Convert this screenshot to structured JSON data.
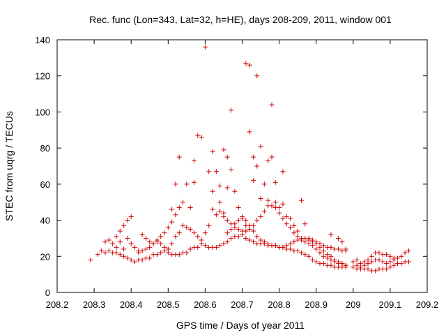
{
  "chart_data": {
    "type": "scatter",
    "title": "Rec. func (Lon=343, Lat=32, h=HE), days 208-209, 2011, window 001",
    "xlabel": "GPS time / Days of year 2011",
    "ylabel": "STEC from uqrg / TECUs",
    "xlim": [
      208.2,
      209.2
    ],
    "ylim": [
      0,
      140
    ],
    "xticks": [
      208.2,
      208.3,
      208.4,
      208.5,
      208.6,
      208.7,
      208.8,
      208.9,
      209,
      209.1,
      209.2
    ],
    "xtick_labels": [
      "208.2",
      "208.3",
      "208.4",
      "208.5",
      "208.6",
      "208.7",
      "208.8",
      "208.9",
      "209",
      "209.1",
      "209.2"
    ],
    "yticks": [
      0,
      20,
      40,
      60,
      80,
      100,
      120,
      140
    ],
    "ytick_labels": [
      "0",
      "20",
      "40",
      "60",
      "80",
      "100",
      "120",
      "140"
    ],
    "grid": false,
    "marker": "+",
    "color": "#cc0000",
    "series": [
      {
        "name": "STEC",
        "points": [
          [
            208.29,
            18
          ],
          [
            208.31,
            21
          ],
          [
            208.32,
            23
          ],
          [
            208.33,
            28
          ],
          [
            208.34,
            29
          ],
          [
            208.35,
            22
          ],
          [
            208.36,
            22
          ],
          [
            208.37,
            21
          ],
          [
            208.38,
            20
          ],
          [
            208.39,
            19
          ],
          [
            208.4,
            18
          ],
          [
            208.41,
            17
          ],
          [
            208.42,
            18
          ],
          [
            208.43,
            18
          ],
          [
            208.44,
            19
          ],
          [
            208.45,
            19
          ],
          [
            208.46,
            21
          ],
          [
            208.47,
            21
          ],
          [
            208.48,
            22
          ],
          [
            208.49,
            23
          ],
          [
            208.5,
            22
          ],
          [
            208.51,
            21
          ],
          [
            208.52,
            21
          ],
          [
            208.53,
            21
          ],
          [
            208.54,
            22
          ],
          [
            208.55,
            22
          ],
          [
            208.56,
            24
          ],
          [
            208.57,
            25
          ],
          [
            208.58,
            25
          ],
          [
            208.59,
            27
          ],
          [
            208.6,
            26
          ],
          [
            208.61,
            25
          ],
          [
            208.62,
            25
          ],
          [
            208.63,
            25
          ],
          [
            208.64,
            26
          ],
          [
            208.65,
            27
          ],
          [
            208.66,
            28
          ],
          [
            208.67,
            30
          ],
          [
            208.68,
            31
          ],
          [
            208.69,
            31
          ],
          [
            208.7,
            32
          ],
          [
            208.71,
            30
          ],
          [
            208.72,
            29
          ],
          [
            208.73,
            28
          ],
          [
            208.74,
            27
          ],
          [
            208.75,
            27
          ],
          [
            208.76,
            27
          ],
          [
            208.77,
            26
          ],
          [
            208.78,
            26
          ],
          [
            208.79,
            26
          ],
          [
            208.8,
            25
          ],
          [
            208.81,
            25
          ],
          [
            208.82,
            24
          ],
          [
            208.83,
            24
          ],
          [
            208.84,
            23
          ],
          [
            208.85,
            23
          ],
          [
            208.86,
            22
          ],
          [
            208.87,
            21
          ],
          [
            208.88,
            20
          ],
          [
            208.89,
            18
          ],
          [
            208.9,
            17
          ],
          [
            208.91,
            16
          ],
          [
            208.92,
            16
          ],
          [
            208.93,
            15
          ],
          [
            208.94,
            15
          ],
          [
            208.95,
            14
          ],
          [
            208.96,
            14
          ],
          [
            208.97,
            14
          ],
          [
            208.98,
            14
          ],
          [
            209.0,
            14
          ],
          [
            209.01,
            13
          ],
          [
            209.02,
            13
          ],
          [
            209.03,
            13
          ],
          [
            209.04,
            13
          ],
          [
            209.05,
            12
          ],
          [
            209.06,
            12
          ],
          [
            209.07,
            13
          ],
          [
            209.08,
            13
          ],
          [
            209.09,
            13
          ],
          [
            209.1,
            14
          ],
          [
            209.11,
            15
          ],
          [
            209.12,
            16
          ],
          [
            209.13,
            16
          ],
          [
            209.14,
            17
          ],
          [
            209.15,
            17
          ],
          [
            208.33,
            22
          ],
          [
            208.34,
            23
          ],
          [
            208.35,
            27
          ],
          [
            208.36,
            31
          ],
          [
            208.37,
            34
          ],
          [
            208.38,
            37
          ],
          [
            208.39,
            40
          ],
          [
            208.4,
            42
          ],
          [
            208.39,
            30
          ],
          [
            208.4,
            27
          ],
          [
            208.41,
            25
          ],
          [
            208.42,
            23
          ],
          [
            208.43,
            23
          ],
          [
            208.44,
            24
          ],
          [
            208.45,
            25
          ],
          [
            208.46,
            27
          ],
          [
            208.47,
            29
          ],
          [
            208.48,
            31
          ],
          [
            208.49,
            33
          ],
          [
            208.5,
            36
          ],
          [
            208.51,
            39
          ],
          [
            208.52,
            43
          ],
          [
            208.53,
            47
          ],
          [
            208.36,
            25
          ],
          [
            208.37,
            28
          ],
          [
            208.38,
            24
          ],
          [
            208.42,
            22
          ],
          [
            208.43,
            32
          ],
          [
            208.44,
            30
          ],
          [
            208.45,
            28
          ],
          [
            208.46,
            27
          ],
          [
            208.47,
            28
          ],
          [
            208.48,
            27
          ],
          [
            208.49,
            25
          ],
          [
            208.5,
            24
          ],
          [
            208.51,
            27
          ],
          [
            208.52,
            31
          ],
          [
            208.53,
            33
          ],
          [
            208.54,
            37
          ],
          [
            208.55,
            36
          ],
          [
            208.56,
            35
          ],
          [
            208.57,
            33
          ],
          [
            208.58,
            31
          ],
          [
            208.59,
            29
          ],
          [
            208.6,
            33
          ],
          [
            208.61,
            37
          ],
          [
            208.51,
            46
          ],
          [
            208.52,
            60
          ],
          [
            208.53,
            75
          ],
          [
            208.54,
            50
          ],
          [
            208.55,
            60
          ],
          [
            208.56,
            47
          ],
          [
            208.57,
            61
          ],
          [
            208.57,
            73
          ],
          [
            208.58,
            87
          ],
          [
            208.59,
            86
          ],
          [
            208.6,
            136
          ],
          [
            208.61,
            67
          ],
          [
            208.62,
            56
          ],
          [
            208.62,
            78
          ],
          [
            208.63,
            67
          ],
          [
            208.64,
            59
          ],
          [
            208.64,
            50
          ],
          [
            208.65,
            44
          ],
          [
            208.65,
            79
          ],
          [
            208.66,
            75
          ],
          [
            208.66,
            58
          ],
          [
            208.67,
            68
          ],
          [
            208.67,
            101
          ],
          [
            208.68,
            56
          ],
          [
            208.69,
            47
          ],
          [
            208.7,
            41
          ],
          [
            208.71,
            37
          ],
          [
            208.71,
            127
          ],
          [
            208.72,
            126
          ],
          [
            208.72,
            89
          ],
          [
            208.73,
            75
          ],
          [
            208.73,
            62
          ],
          [
            208.74,
            120
          ],
          [
            208.74,
            70
          ],
          [
            208.75,
            52
          ],
          [
            208.75,
            81
          ],
          [
            208.76,
            60
          ],
          [
            208.77,
            73
          ],
          [
            208.77,
            51
          ],
          [
            208.78,
            75
          ],
          [
            208.78,
            104
          ],
          [
            208.79,
            61
          ],
          [
            208.79,
            50
          ],
          [
            208.8,
            47
          ],
          [
            208.81,
            67
          ],
          [
            208.81,
            49
          ],
          [
            208.82,
            42
          ],
          [
            208.83,
            41
          ],
          [
            208.84,
            37
          ],
          [
            208.85,
            34
          ],
          [
            208.86,
            51
          ],
          [
            208.87,
            38
          ],
          [
            208.88,
            30
          ],
          [
            208.89,
            29
          ],
          [
            208.9,
            28
          ],
          [
            208.91,
            27
          ],
          [
            208.92,
            26
          ],
          [
            208.93,
            25
          ],
          [
            208.94,
            25
          ],
          [
            208.95,
            24
          ],
          [
            208.96,
            24
          ],
          [
            208.97,
            23
          ],
          [
            208.98,
            23
          ],
          [
            208.62,
            46
          ],
          [
            208.63,
            43
          ],
          [
            208.64,
            45
          ],
          [
            208.65,
            42
          ],
          [
            208.66,
            40
          ],
          [
            208.67,
            38
          ],
          [
            208.68,
            36
          ],
          [
            208.69,
            35
          ],
          [
            208.7,
            34
          ],
          [
            208.71,
            34
          ],
          [
            208.72,
            35
          ],
          [
            208.73,
            37
          ],
          [
            208.74,
            40
          ],
          [
            208.75,
            42
          ],
          [
            208.76,
            45
          ],
          [
            208.77,
            48
          ],
          [
            208.78,
            48
          ],
          [
            208.79,
            47
          ],
          [
            208.8,
            44
          ],
          [
            208.81,
            41
          ],
          [
            208.82,
            38
          ],
          [
            208.83,
            36
          ],
          [
            208.84,
            33
          ],
          [
            208.85,
            31
          ],
          [
            208.86,
            29
          ],
          [
            208.87,
            28
          ],
          [
            208.88,
            27
          ],
          [
            208.89,
            26
          ],
          [
            208.9,
            24
          ],
          [
            208.91,
            22
          ],
          [
            208.92,
            20
          ],
          [
            208.93,
            19
          ],
          [
            208.94,
            18
          ],
          [
            208.95,
            17
          ],
          [
            208.96,
            16
          ],
          [
            208.97,
            16
          ],
          [
            208.98,
            15
          ],
          [
            208.66,
            33
          ],
          [
            208.67,
            35
          ],
          [
            208.68,
            38
          ],
          [
            208.69,
            40
          ],
          [
            208.7,
            42
          ],
          [
            208.71,
            40
          ],
          [
            208.72,
            37
          ],
          [
            208.73,
            34
          ],
          [
            208.74,
            31
          ],
          [
            208.75,
            29
          ],
          [
            208.76,
            28
          ],
          [
            208.77,
            27
          ],
          [
            208.78,
            26
          ],
          [
            208.79,
            26
          ],
          [
            208.8,
            25
          ],
          [
            208.81,
            25
          ],
          [
            208.82,
            26
          ],
          [
            208.83,
            27
          ],
          [
            208.84,
            28
          ],
          [
            208.85,
            29
          ],
          [
            208.86,
            30
          ],
          [
            208.87,
            30
          ],
          [
            208.88,
            29
          ],
          [
            208.89,
            28
          ],
          [
            208.9,
            27
          ],
          [
            208.91,
            25
          ],
          [
            208.92,
            23
          ],
          [
            208.93,
            21
          ],
          [
            208.94,
            20
          ],
          [
            208.95,
            18
          ],
          [
            208.96,
            17
          ],
          [
            208.97,
            16
          ],
          [
            208.98,
            15
          ],
          [
            208.94,
            32
          ],
          [
            208.96,
            30
          ],
          [
            208.97,
            28
          ],
          [
            208.98,
            24
          ],
          [
            209.0,
            17
          ],
          [
            209.01,
            18
          ],
          [
            209.02,
            16
          ],
          [
            209.03,
            17
          ],
          [
            209.04,
            18
          ],
          [
            209.05,
            20
          ],
          [
            209.06,
            22
          ],
          [
            209.07,
            22
          ],
          [
            209.08,
            21
          ],
          [
            209.09,
            21
          ],
          [
            209.1,
            20
          ],
          [
            209.11,
            19
          ],
          [
            209.12,
            19
          ],
          [
            209.13,
            20
          ],
          [
            209.14,
            22
          ],
          [
            209.15,
            23
          ],
          [
            209.01,
            15
          ],
          [
            209.02,
            14
          ],
          [
            209.03,
            15
          ],
          [
            209.04,
            16
          ],
          [
            209.05,
            17
          ],
          [
            209.06,
            18
          ],
          [
            209.07,
            18
          ],
          [
            209.08,
            17
          ],
          [
            209.09,
            16
          ],
          [
            209.1,
            17
          ],
          [
            209.11,
            18
          ]
        ]
      }
    ]
  }
}
